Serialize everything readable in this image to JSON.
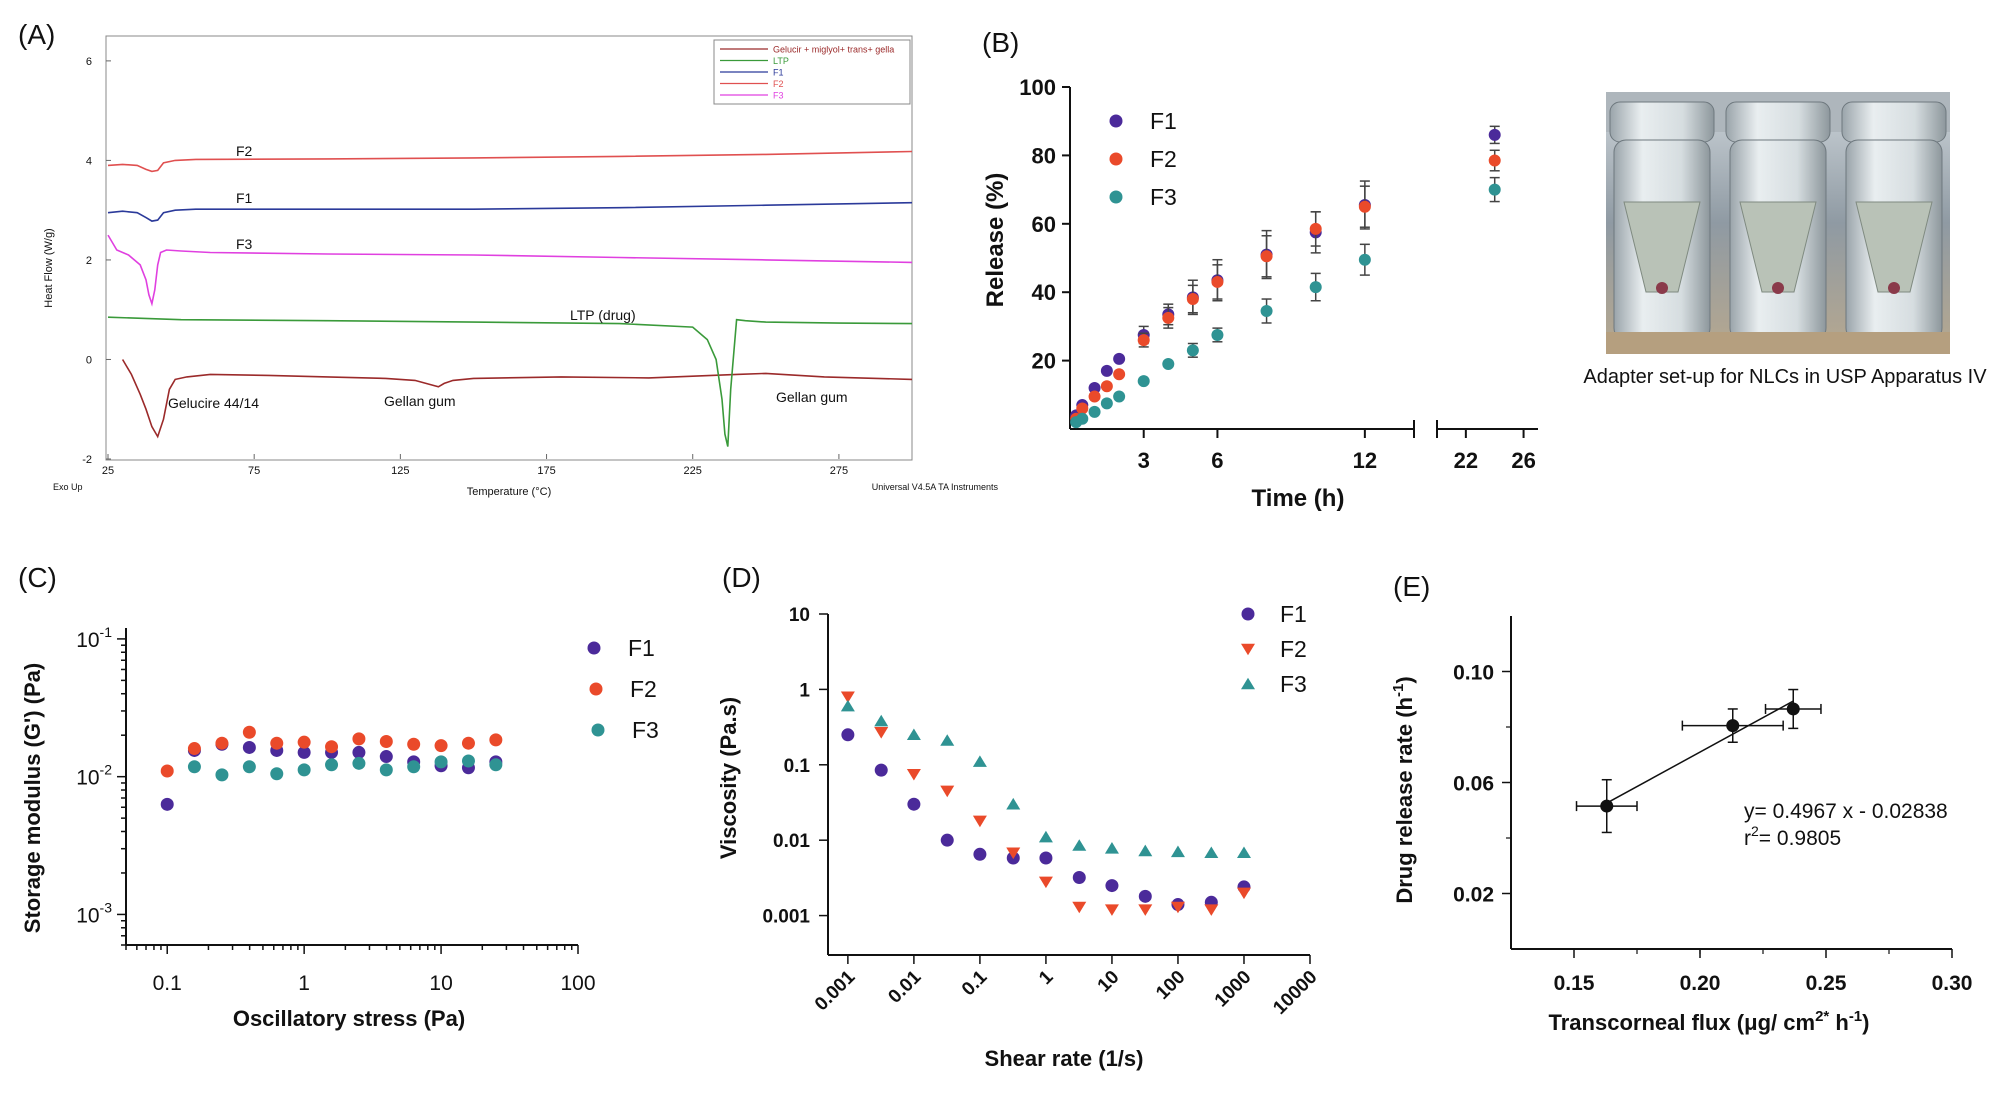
{
  "panels": {
    "A": "(A)",
    "B": "(B)",
    "C": "(C)",
    "D": "(D)",
    "E": "(E)"
  },
  "colors": {
    "F1": "#4b2a9a",
    "F2": "#ea4a2a",
    "F3": "#2f9393",
    "dsc_gelucir": "#9b2a2a",
    "dsc_ltp": "#3a9a3a",
    "dsc_f1": "#2b3a9a",
    "dsc_f2": "#e05050",
    "dsc_f3": "#e040e0"
  },
  "photo": {
    "caption": "Adapter set-up for NLCs in USP Apparatus IV"
  },
  "chart_data": [
    {
      "panel": "A",
      "type": "line",
      "xlabel": "Temperature (°C)",
      "ylabel": "Heat Flow (W/g)",
      "xlim": [
        25,
        300
      ],
      "ylim": [
        -2,
        6.5
      ],
      "xticks": [
        25,
        75,
        125,
        175,
        225,
        275
      ],
      "yticks": [
        -2,
        0,
        2,
        4,
        6
      ],
      "corner_left": "Exo Up",
      "corner_right": "Universal V4.5A TA Instruments",
      "legend_position": "top-right",
      "legend": [
        "Gelucir + miglyol+ trans+ gella",
        "LTP",
        "F1",
        "F2",
        "F3"
      ],
      "annotations": [
        "F2",
        "F1",
        "F3",
        "LTP (drug)",
        "Gelucire 44/14",
        "Gellan gum",
        "Gellan gum"
      ],
      "series": [
        {
          "name": "Gelucir + miglyol+ trans+ gella",
          "x": [
            30,
            33,
            36,
            38,
            40,
            42,
            44,
            46,
            48,
            52,
            60,
            80,
            100,
            120,
            130,
            135,
            138,
            140,
            143,
            150,
            180,
            210,
            240,
            250,
            270,
            300
          ],
          "y": [
            0.0,
            -0.3,
            -0.7,
            -1.0,
            -1.35,
            -1.55,
            -1.2,
            -0.6,
            -0.4,
            -0.35,
            -0.3,
            -0.32,
            -0.35,
            -0.38,
            -0.42,
            -0.5,
            -0.55,
            -0.48,
            -0.42,
            -0.38,
            -0.35,
            -0.37,
            -0.3,
            -0.28,
            -0.35,
            -0.4
          ]
        },
        {
          "name": "LTP",
          "x": [
            25,
            50,
            100,
            150,
            200,
            225,
            230,
            233,
            235,
            236,
            237,
            238,
            240,
            243,
            250,
            275,
            300
          ],
          "y": [
            0.85,
            0.8,
            0.78,
            0.75,
            0.72,
            0.65,
            0.4,
            0.0,
            -0.8,
            -1.5,
            -1.75,
            -0.6,
            0.8,
            0.78,
            0.75,
            0.73,
            0.72
          ]
        },
        {
          "name": "F1",
          "x": [
            25,
            30,
            35,
            38,
            40,
            42,
            44,
            48,
            55,
            100,
            150,
            200,
            250,
            300
          ],
          "y": [
            2.95,
            2.98,
            2.95,
            2.85,
            2.78,
            2.8,
            2.95,
            3.0,
            3.02,
            3.02,
            3.02,
            3.05,
            3.1,
            3.15
          ]
        },
        {
          "name": "F2",
          "x": [
            25,
            30,
            35,
            38,
            40,
            42,
            44,
            48,
            55,
            100,
            150,
            200,
            250,
            300
          ],
          "y": [
            3.9,
            3.92,
            3.9,
            3.82,
            3.78,
            3.8,
            3.95,
            4.0,
            4.02,
            4.03,
            4.05,
            4.08,
            4.12,
            4.18
          ]
        },
        {
          "name": "F3",
          "x": [
            25,
            28,
            32,
            36,
            38,
            39,
            40,
            41,
            42,
            43,
            45,
            50,
            60,
            100,
            150,
            200,
            250,
            300
          ],
          "y": [
            2.5,
            2.2,
            2.1,
            1.9,
            1.6,
            1.3,
            1.12,
            1.4,
            1.9,
            2.15,
            2.2,
            2.18,
            2.15,
            2.12,
            2.1,
            2.05,
            2.0,
            1.95
          ]
        }
      ]
    },
    {
      "panel": "B",
      "type": "scatter",
      "xlabel": "Time (h)",
      "ylabel": "Release (%)",
      "ylim": [
        0,
        100
      ],
      "yticks": [
        20,
        40,
        60,
        80,
        100
      ],
      "xticks_left": [
        3,
        6,
        12
      ],
      "xticks_right": [
        22,
        26
      ],
      "legend_position": "top-left",
      "series": [
        {
          "name": "F1",
          "x": [
            0.25,
            0.5,
            1,
            1.5,
            2,
            3,
            4,
            5,
            6,
            8,
            10,
            12,
            24
          ],
          "y": [
            4,
            7,
            12,
            17,
            20.5,
            27.5,
            33.5,
            38.5,
            43.5,
            51,
            57.5,
            65.5,
            86
          ],
          "err": [
            0,
            0,
            0,
            0,
            0,
            2.5,
            3,
            5,
            6,
            7,
            6,
            7,
            2.5
          ]
        },
        {
          "name": "F2",
          "x": [
            0.25,
            0.5,
            1,
            1.5,
            2,
            3,
            4,
            5,
            6,
            8,
            10,
            12,
            24
          ],
          "y": [
            3,
            6,
            9.5,
            12.5,
            16,
            26,
            32.5,
            38,
            43,
            50.5,
            58.5,
            65,
            78.5
          ],
          "err": [
            0,
            0,
            0,
            0,
            0,
            2,
            3,
            4,
            5,
            6,
            5,
            6,
            3
          ]
        },
        {
          "name": "F3",
          "x": [
            0.25,
            0.5,
            1,
            1.5,
            2,
            3,
            4,
            5,
            6,
            8,
            10,
            12,
            24
          ],
          "y": [
            2,
            3,
            5,
            7.5,
            9.5,
            14,
            19,
            23,
            27.5,
            34.5,
            41.5,
            49.5,
            70
          ],
          "err": [
            0,
            0,
            0,
            0,
            0,
            0,
            0,
            2,
            2,
            3.5,
            4,
            4.5,
            3.5
          ]
        }
      ]
    },
    {
      "panel": "C",
      "type": "scatter",
      "xlabel": "Oscillatory stress (Pa)",
      "ylabel": "Storage modulus (G') (Pa)",
      "xscale": "log",
      "yscale": "log",
      "xlim": [
        0.05,
        100
      ],
      "ylim": [
        0.0006,
        0.12
      ],
      "xticks": [
        "0.1",
        "1",
        "10",
        "100"
      ],
      "yticks_log": [
        {
          "base": "10",
          "exp": "-1",
          "value": 0.1
        },
        {
          "base": "10",
          "exp": "-2",
          "value": 0.01
        },
        {
          "base": "10",
          "exp": "-3",
          "value": 0.001
        }
      ],
      "legend_position": "top-right",
      "series": [
        {
          "name": "F1",
          "x": [
            0.1,
            0.158,
            0.251,
            0.398,
            0.631,
            1,
            1.585,
            2.512,
            3.981,
            6.31,
            10,
            15.85,
            25.12
          ],
          "y": [
            0.0063,
            0.0155,
            0.0172,
            0.0163,
            0.0155,
            0.015,
            0.015,
            0.015,
            0.014,
            0.0128,
            0.012,
            0.0116,
            0.0128
          ]
        },
        {
          "name": "F2",
          "x": [
            0.1,
            0.158,
            0.251,
            0.398,
            0.631,
            1,
            1.585,
            2.512,
            3.981,
            6.31,
            10,
            15.85,
            25.12
          ],
          "y": [
            0.011,
            0.016,
            0.0175,
            0.021,
            0.0175,
            0.0178,
            0.0165,
            0.0188,
            0.018,
            0.0172,
            0.0168,
            0.0175,
            0.0185
          ]
        },
        {
          "name": "F3",
          "x": [
            0.1,
            0.158,
            0.251,
            0.398,
            0.631,
            1,
            1.585,
            2.512,
            3.981,
            6.31,
            10,
            15.85,
            25.12
          ],
          "y": [
            null,
            0.0118,
            0.0103,
            0.0118,
            0.0105,
            0.0112,
            0.0122,
            0.0125,
            0.0112,
            0.0118,
            0.0128,
            0.013,
            0.0122
          ]
        }
      ]
    },
    {
      "panel": "D",
      "type": "scatter",
      "xlabel": "Shear rate (1/s)",
      "ylabel": "Viscosity (Pa.s)",
      "xscale": "log",
      "yscale": "log",
      "xlim": [
        0.0005,
        10000
      ],
      "ylim": [
        0.0003,
        10
      ],
      "xticks": [
        "0.001",
        "0.01",
        "0.1",
        "1",
        "10",
        "100",
        "1000",
        "10000"
      ],
      "yticks": [
        "10",
        "1",
        "0.1",
        "0.01",
        "0.001"
      ],
      "legend_position": "top-right",
      "series": [
        {
          "name": "F1",
          "marker": "circle",
          "x": [
            0.001,
            0.0032,
            0.01,
            0.032,
            0.1,
            0.32,
            1,
            3.2,
            10,
            32,
            100,
            320,
            1000
          ],
          "y": [
            0.25,
            0.085,
            0.03,
            0.01,
            0.0065,
            0.0058,
            0.0058,
            0.0032,
            0.0025,
            0.0018,
            0.0014,
            0.0015,
            0.0024
          ]
        },
        {
          "name": "F2",
          "marker": "triangle-down",
          "x": [
            0.001,
            0.0032,
            0.01,
            0.032,
            0.1,
            0.32,
            1,
            3.2,
            10,
            32,
            100,
            320,
            1000
          ],
          "y": [
            0.8,
            0.27,
            0.075,
            0.045,
            0.018,
            0.0068,
            0.0028,
            0.0013,
            0.0012,
            0.0012,
            0.0013,
            0.0012,
            0.002
          ]
        },
        {
          "name": "F3",
          "marker": "triangle-up",
          "x": [
            0.001,
            0.0032,
            0.01,
            0.032,
            0.1,
            0.32,
            1,
            3.2,
            10,
            32,
            100,
            320,
            1000
          ],
          "y": [
            0.6,
            0.38,
            0.25,
            0.21,
            0.11,
            0.03,
            0.011,
            0.0085,
            0.0078,
            0.0072,
            0.007,
            0.0068,
            0.0068
          ]
        }
      ]
    },
    {
      "panel": "E",
      "type": "scatter",
      "xlabel": "Transcorneal flux (μg/ cm2* h-1)",
      "ylabel": "Drug release rate (h-1)",
      "xlim": [
        0.125,
        0.3
      ],
      "ylim": [
        0.0,
        0.12
      ],
      "xticks": [
        "0.15",
        "0.20",
        "0.25",
        "0.30"
      ],
      "yticks": [
        "0.02",
        "0.06",
        "0.10"
      ],
      "equation": "y= 0.4967 x - 0.02838",
      "r2_label": "r2= 0.9805",
      "points": {
        "x": [
          0.163,
          0.213,
          0.237
        ],
        "y": [
          0.0515,
          0.0805,
          0.0865
        ],
        "xerr": [
          0.012,
          0.02,
          0.011
        ],
        "yerr": [
          0.0095,
          0.006,
          0.007
        ]
      },
      "fit": {
        "slope": 0.4967,
        "intercept": -0.02838
      }
    }
  ]
}
